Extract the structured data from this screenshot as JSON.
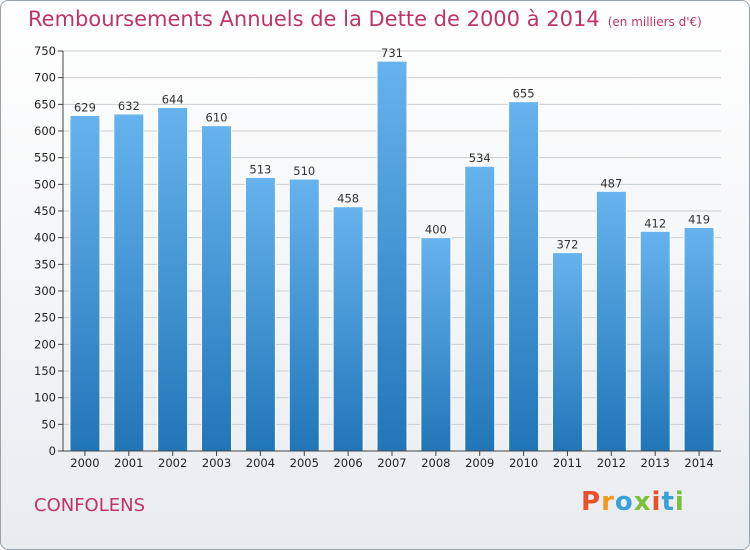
{
  "title": "Remboursements Annuels de la Dette de 2000 à 2014",
  "subtitle": "(en milliers d'€)",
  "city": "CONFOLENS",
  "logo": {
    "text": "Proxiti",
    "letter_colors": [
      "#e8522b",
      "#f39a1e",
      "#3aa0d8",
      "#7bbf3a",
      "#e8522b",
      "#3aa0d8",
      "#7bbf3a"
    ]
  },
  "colors": {
    "bar_top": "#66b3ee",
    "bar_bottom": "#2176b8",
    "title": "#c0336a"
  },
  "chart_data": {
    "type": "bar",
    "title": "Remboursements Annuels de la Dette de 2000 à 2014",
    "subtitle": "(en milliers d'€)",
    "categories": [
      "2000",
      "2001",
      "2002",
      "2003",
      "2004",
      "2005",
      "2006",
      "2007",
      "2008",
      "2009",
      "2010",
      "2011",
      "2012",
      "2013",
      "2014"
    ],
    "values": [
      629,
      632,
      644,
      610,
      513,
      510,
      458,
      731,
      400,
      534,
      655,
      372,
      487,
      412,
      419
    ],
    "ylim": [
      0,
      750
    ],
    "yticks": [
      0,
      50,
      100,
      150,
      200,
      250,
      300,
      350,
      400,
      450,
      500,
      550,
      600,
      650,
      700,
      750
    ],
    "grid": true,
    "data_labels": true
  }
}
